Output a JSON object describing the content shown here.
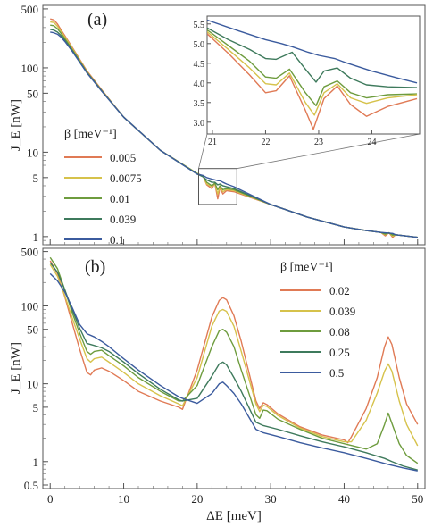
{
  "chart_data": [
    {
      "panel": "(a)",
      "type": "line",
      "scale": "log-y",
      "ylabel": "J_E [nW]",
      "xlabel": "",
      "xlim": [
        -1,
        51
      ],
      "ylim": [
        0.8,
        550
      ],
      "yticks": [
        1,
        5,
        10,
        50,
        100,
        500
      ],
      "legend": {
        "title": "β [meV⁻¹]",
        "placement": "left-middle",
        "entries": [
          "0.005",
          "0.0075",
          "0.01",
          "0.039",
          "0.1"
        ]
      },
      "series": [
        {
          "name": "0.005",
          "color": "#e07a55",
          "x": [
            0,
            0.5,
            1,
            1.5,
            2,
            3,
            5,
            7,
            10,
            15,
            20,
            20.8,
            21.3,
            22.0,
            22.4,
            22.8,
            23.1,
            23.5,
            24,
            25,
            30,
            35,
            40,
            43,
            45,
            45.6,
            46.1,
            46.6,
            47,
            50
          ],
          "y": [
            380,
            370,
            330,
            280,
            240,
            175,
            92,
            55,
            26,
            10.5,
            5.6,
            5.2,
            4.1,
            3.7,
            4.3,
            2.8,
            3.8,
            3.2,
            3.5,
            3.4,
            2.4,
            1.7,
            1.3,
            1.18,
            1.12,
            1.02,
            1.11,
            0.98,
            1.05,
            0.98
          ]
        },
        {
          "name": "0.0075",
          "color": "#d6c24b",
          "x": [
            0,
            0.5,
            1,
            1.5,
            2,
            3,
            5,
            7,
            10,
            15,
            20,
            20.8,
            21.3,
            22.0,
            22.4,
            22.8,
            23.1,
            23.5,
            24,
            25,
            30,
            35,
            40,
            43,
            45,
            45.6,
            46.1,
            46.6,
            47,
            50
          ],
          "y": [
            350,
            345,
            310,
            268,
            232,
            170,
            90,
            54,
            26,
            10.5,
            5.6,
            5.2,
            4.2,
            3.9,
            4.3,
            3.2,
            3.9,
            3.4,
            3.6,
            3.5,
            2.4,
            1.7,
            1.3,
            1.18,
            1.12,
            1.05,
            1.11,
            1.01,
            1.05,
            0.98
          ]
        },
        {
          "name": "0.01",
          "color": "#6e9c3e",
          "x": [
            0,
            0.5,
            1,
            1.5,
            2,
            3,
            5,
            7,
            10,
            15,
            20,
            20.8,
            21.3,
            22.0,
            22.4,
            22.8,
            23.1,
            23.5,
            24,
            25,
            30,
            35,
            40,
            43,
            45,
            45.6,
            46.1,
            46.6,
            47,
            50
          ],
          "y": [
            320,
            315,
            290,
            255,
            222,
            165,
            89,
            54,
            26,
            10.5,
            5.6,
            5.2,
            4.4,
            4.0,
            4.3,
            3.6,
            4.0,
            3.6,
            3.7,
            3.6,
            2.4,
            1.7,
            1.3,
            1.18,
            1.12,
            1.07,
            1.11,
            1.04,
            1.05,
            0.98
          ]
        },
        {
          "name": "0.039",
          "color": "#3e7a5c",
          "x": [
            0,
            0.5,
            1,
            1.5,
            2,
            3,
            5,
            7,
            10,
            15,
            20,
            20.8,
            21.3,
            22.0,
            22.4,
            22.8,
            23.1,
            23.5,
            24,
            25,
            30,
            35,
            40,
            43,
            45,
            45.6,
            46.1,
            46.6,
            47,
            50
          ],
          "y": [
            285,
            280,
            265,
            240,
            212,
            160,
            88,
            53,
            26,
            10.5,
            5.5,
            5.1,
            4.7,
            4.4,
            4.4,
            4.1,
            4.2,
            4.0,
            3.9,
            3.7,
            2.4,
            1.7,
            1.3,
            1.18,
            1.12,
            1.1,
            1.1,
            1.08,
            1.05,
            0.98
          ]
        },
        {
          "name": "0.1",
          "color": "#3b5b9e",
          "x": [
            0,
            0.5,
            1,
            1.5,
            2,
            3,
            5,
            7,
            10,
            15,
            20,
            20.8,
            21.3,
            22.0,
            22.4,
            22.8,
            23.1,
            23.5,
            24,
            25,
            30,
            35,
            40,
            43,
            45,
            45.6,
            46.1,
            46.6,
            47,
            50
          ],
          "y": [
            265,
            260,
            250,
            230,
            205,
            157,
            87,
            53,
            26,
            10.5,
            5.5,
            5.3,
            5.0,
            4.8,
            4.7,
            4.6,
            4.6,
            4.4,
            4.2,
            3.9,
            2.4,
            1.7,
            1.3,
            1.18,
            1.12,
            1.11,
            1.1,
            1.09,
            1.05,
            0.98
          ]
        }
      ],
      "inset": {
        "xlim": [
          20.9,
          24.9
        ],
        "ylim": [
          2.7,
          5.7
        ],
        "xticks": [
          21,
          22,
          23,
          24
        ],
        "yticks": [
          3.0,
          3.5,
          4.0,
          4.5,
          5.0,
          5.5
        ],
        "series": [
          {
            "name": "0.1",
            "x": [
              20.9,
              21.5,
              22.0,
              22.3,
              22.5,
              22.8,
              23.0,
              23.3,
              23.5,
              24.0,
              24.5,
              24.85
            ],
            "y": [
              5.6,
              5.32,
              5.1,
              5.0,
              4.92,
              4.78,
              4.7,
              4.62,
              4.52,
              4.3,
              4.12,
              4.0
            ]
          },
          {
            "name": "0.039",
            "x": [
              20.9,
              21.3,
              21.7,
              22.0,
              22.2,
              22.5,
              22.75,
              22.95,
              23.1,
              23.35,
              23.6,
              23.9,
              24.3,
              24.85
            ],
            "y": [
              5.4,
              5.1,
              4.85,
              4.62,
              4.6,
              4.78,
              4.35,
              4.02,
              4.3,
              4.38,
              4.12,
              3.95,
              3.9,
              3.88
            ]
          },
          {
            "name": "0.01",
            "x": [
              20.9,
              21.3,
              21.7,
              22.0,
              22.2,
              22.45,
              22.75,
              22.95,
              23.1,
              23.35,
              23.6,
              23.9,
              24.3,
              24.85
            ],
            "y": [
              5.35,
              4.95,
              4.55,
              4.15,
              4.12,
              4.35,
              3.75,
              3.42,
              3.9,
              4.05,
              3.75,
              3.62,
              3.7,
              3.72
            ]
          },
          {
            "name": "0.0075",
            "x": [
              20.9,
              21.3,
              21.7,
              22.0,
              22.2,
              22.45,
              22.75,
              22.92,
              23.1,
              23.35,
              23.6,
              23.9,
              24.3,
              24.85
            ],
            "y": [
              5.3,
              4.85,
              4.38,
              3.98,
              3.95,
              4.25,
              3.5,
              3.18,
              3.75,
              3.98,
              3.62,
              3.48,
              3.62,
              3.7
            ]
          },
          {
            "name": "0.005",
            "x": [
              20.9,
              21.3,
              21.7,
              22.0,
              22.2,
              22.45,
              22.75,
              22.9,
              23.1,
              23.35,
              23.6,
              23.9,
              24.3,
              24.85
            ],
            "y": [
              5.25,
              4.75,
              4.2,
              3.75,
              3.8,
              4.18,
              3.3,
              2.82,
              3.6,
              3.92,
              3.45,
              3.15,
              3.4,
              3.6
            ]
          }
        ]
      }
    },
    {
      "panel": "(b)",
      "type": "line",
      "scale": "log-y",
      "ylabel": "J_E [nW]",
      "xlabel": "ΔE [meV]",
      "xlim": [
        -1,
        51
      ],
      "ylim": [
        0.45,
        550
      ],
      "xticks": [
        0,
        10,
        20,
        30,
        40,
        50
      ],
      "yticks": [
        0.5,
        1,
        5,
        10,
        50,
        100,
        500
      ],
      "legend": {
        "title": "β [meV⁻¹]",
        "placement": "right-top",
        "entries": [
          "0.02",
          "0.039",
          "0.08",
          "0.25",
          "0.5"
        ]
      },
      "series": [
        {
          "name": "0.02",
          "color": "#e07a55",
          "x": [
            0,
            1,
            2,
            3,
            4,
            5,
            5.5,
            6,
            7,
            8,
            10,
            12,
            15,
            17.5,
            18,
            20,
            22,
            23,
            23.5,
            24,
            25,
            26,
            28,
            28.5,
            29,
            29.5,
            31,
            34,
            37,
            40,
            40.5,
            41,
            43,
            44.5,
            45.5,
            46,
            46.5,
            47.5,
            48.5,
            50
          ],
          "y": [
            380,
            260,
            130,
            60,
            28,
            14,
            13,
            15,
            16,
            14.5,
            11,
            8,
            6,
            5,
            4.7,
            15,
            72,
            118,
            128,
            120,
            75,
            35,
            6,
            4.8,
            5.7,
            5.4,
            4.1,
            2.8,
            2.2,
            1.9,
            1.75,
            2.1,
            4.8,
            12,
            30,
            40,
            32,
            12,
            5.5,
            3
          ]
        },
        {
          "name": "0.039",
          "color": "#d6c24b",
          "x": [
            0,
            1,
            2,
            3,
            4,
            5,
            5.5,
            6,
            7,
            8,
            10,
            12,
            15,
            17.5,
            18,
            20,
            22,
            23,
            23.5,
            24,
            25,
            26,
            28,
            28.5,
            29,
            29.5,
            31,
            34,
            37,
            40,
            41,
            43,
            44.5,
            45.5,
            46,
            46.5,
            47.5,
            48.5,
            50
          ],
          "y": [
            340,
            240,
            135,
            70,
            38,
            21,
            19,
            21,
            22,
            19,
            14,
            10,
            7,
            5.5,
            5.2,
            12,
            55,
            86,
            90,
            85,
            55,
            26,
            5.5,
            4.4,
            5.3,
            5.1,
            3.9,
            2.7,
            2.1,
            1.8,
            1.8,
            3.4,
            7.6,
            14.5,
            18,
            14.5,
            6,
            3,
            1.6
          ]
        },
        {
          "name": "0.08",
          "color": "#6e9c3e",
          "x": [
            0,
            1,
            2,
            3,
            4,
            5,
            5.5,
            6,
            7,
            8,
            10,
            12,
            15,
            17.5,
            18,
            20,
            22,
            23,
            23.5,
            24,
            25,
            26,
            28,
            28.5,
            29,
            29.5,
            31,
            34,
            37,
            40,
            43,
            44.5,
            45.5,
            46,
            46.5,
            47.5,
            48.5,
            50
          ],
          "y": [
            420,
            300,
            160,
            82,
            45,
            26,
            24,
            26,
            27,
            23,
            17,
            12,
            8,
            6,
            6,
            9.5,
            30,
            48,
            50,
            46,
            30,
            15,
            4,
            3.6,
            4.6,
            4.5,
            3.5,
            2.6,
            2,
            1.7,
            1.45,
            1.7,
            3,
            4.2,
            3.1,
            1.7,
            1.2,
            0.95
          ]
        },
        {
          "name": "0.25",
          "color": "#3e7a5c",
          "x": [
            0,
            1,
            2,
            3,
            4,
            5,
            6,
            7,
            8,
            10,
            12,
            15,
            17.5,
            18,
            20,
            22,
            23,
            23.5,
            24,
            25,
            26,
            28,
            29,
            31,
            34,
            37,
            40,
            43,
            45.5,
            46,
            46.5,
            48,
            50
          ],
          "y": [
            360,
            270,
            160,
            90,
            52,
            33,
            31,
            29,
            26,
            19,
            13.5,
            8.5,
            6.2,
            6,
            6.5,
            12.5,
            18,
            19,
            17.5,
            12,
            8,
            3.2,
            2.9,
            2.6,
            2.15,
            1.8,
            1.55,
            1.3,
            1.1,
            1.05,
            1.0,
            0.88,
            0.78
          ]
        },
        {
          "name": "0.5",
          "color": "#3b5b9e",
          "x": [
            0,
            1,
            2,
            3,
            4,
            5,
            6,
            7,
            8,
            10,
            12,
            15,
            17.5,
            18,
            20,
            22,
            23,
            23.5,
            24,
            25,
            26,
            28,
            29,
            31,
            34,
            37,
            40,
            43,
            46,
            48,
            50
          ],
          "y": [
            260,
            210,
            150,
            95,
            58,
            44,
            40,
            35,
            30,
            21,
            15,
            9.5,
            6.8,
            6.5,
            5.6,
            7.5,
            10,
            10.5,
            9.5,
            7.5,
            5.5,
            2.6,
            2.35,
            2.1,
            1.75,
            1.5,
            1.3,
            1.1,
            0.92,
            0.83,
            0.76
          ]
        }
      ]
    }
  ]
}
